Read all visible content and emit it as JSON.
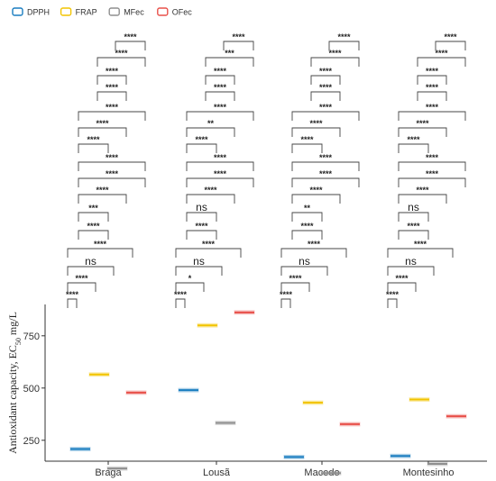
{
  "chart_data": {
    "type": "box",
    "ylabel_main": "Antioxidant capacity, EC",
    "ylabel_sub": "50",
    "ylabel_unit": " mg/L",
    "ylim": [
      150,
      900
    ],
    "yticks": [
      250,
      500,
      750
    ],
    "categories": [
      "Braga",
      "Lousã",
      "Macedo",
      "Montesinho"
    ],
    "legend": {
      "position": "top-left"
    },
    "series": [
      {
        "name": "DPPH",
        "color": "#1a7dc0",
        "values": [
          208,
          490,
          170,
          175
        ]
      },
      {
        "name": "FRAP",
        "color": "#f2c400",
        "values": [
          565,
          800,
          430,
          445
        ]
      },
      {
        "name": "MFec",
        "color": "#8f8f8f",
        "values": [
          115,
          333,
          93,
          137
        ]
      },
      {
        "name": "OFec",
        "color": "#e8504a",
        "values": [
          478,
          862,
          327,
          365
        ]
      }
    ],
    "comparisons": [
      {
        "label": "****",
        "between": [
          "MFec",
          "OFec"
        ]
      },
      {
        "label": "****",
        "between": [
          "FRAP",
          "OFec"
        ]
      },
      {
        "label": "****",
        "between": [
          "FRAP",
          "MFec"
        ]
      },
      {
        "label": "****",
        "between": [
          "DPPH",
          "OFec"
        ]
      },
      {
        "label": "****",
        "between": [
          "DPPH",
          "MFec"
        ]
      },
      {
        "label": "****",
        "between": [
          "DPPH",
          "FRAP"
        ]
      }
    ],
    "annotations": [
      [
        "****",
        "****",
        "****",
        "****",
        "****",
        "****",
        "****",
        "****",
        "****",
        "****",
        "***",
        "****",
        "****",
        "ns",
        "****",
        "****"
      ],
      [
        "****",
        "***",
        "****",
        "****",
        "****",
        "**",
        "****",
        "****",
        "****",
        "****",
        "ns",
        "****",
        "****",
        "ns",
        "*",
        "****"
      ],
      [
        "****",
        "****",
        "****",
        "****",
        "****",
        "****",
        "****",
        "****",
        "****",
        "****",
        "**",
        "****",
        "****",
        "ns",
        "****",
        "****"
      ],
      [
        "****",
        "****",
        "****",
        "****",
        "****",
        "****",
        "****",
        "****",
        "****",
        "****",
        "ns",
        "****",
        "****",
        "ns",
        "****",
        "****"
      ]
    ]
  }
}
